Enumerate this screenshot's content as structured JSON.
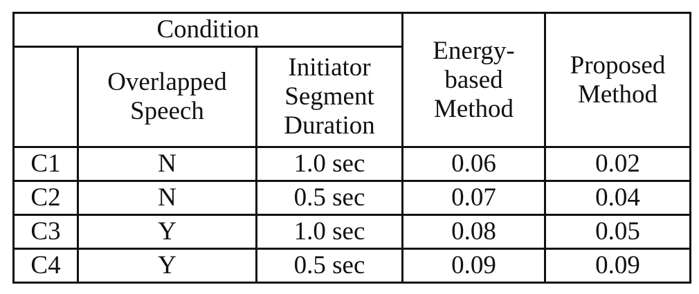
{
  "table": {
    "header": {
      "condition": "Condition",
      "overlapped_speech": [
        "Overlapped",
        "Speech"
      ],
      "initiator_segment_duration": [
        "Initiator",
        "Segment",
        "Duration"
      ],
      "energy_based_method": [
        "Energy-",
        "based",
        "Method"
      ],
      "proposed_method": [
        "Proposed",
        "Method"
      ]
    },
    "rows": [
      {
        "id": "C1",
        "overlapped": "N",
        "duration": "1.0 sec",
        "energy": "0.06",
        "proposed": "0.02"
      },
      {
        "id": "C2",
        "overlapped": "N",
        "duration": "0.5 sec",
        "energy": "0.07",
        "proposed": "0.04"
      },
      {
        "id": "C3",
        "overlapped": "Y",
        "duration": "1.0 sec",
        "energy": "0.08",
        "proposed": "0.05"
      },
      {
        "id": "C4",
        "overlapped": "Y",
        "duration": "0.5 sec",
        "energy": "0.09",
        "proposed": "0.09"
      }
    ]
  }
}
